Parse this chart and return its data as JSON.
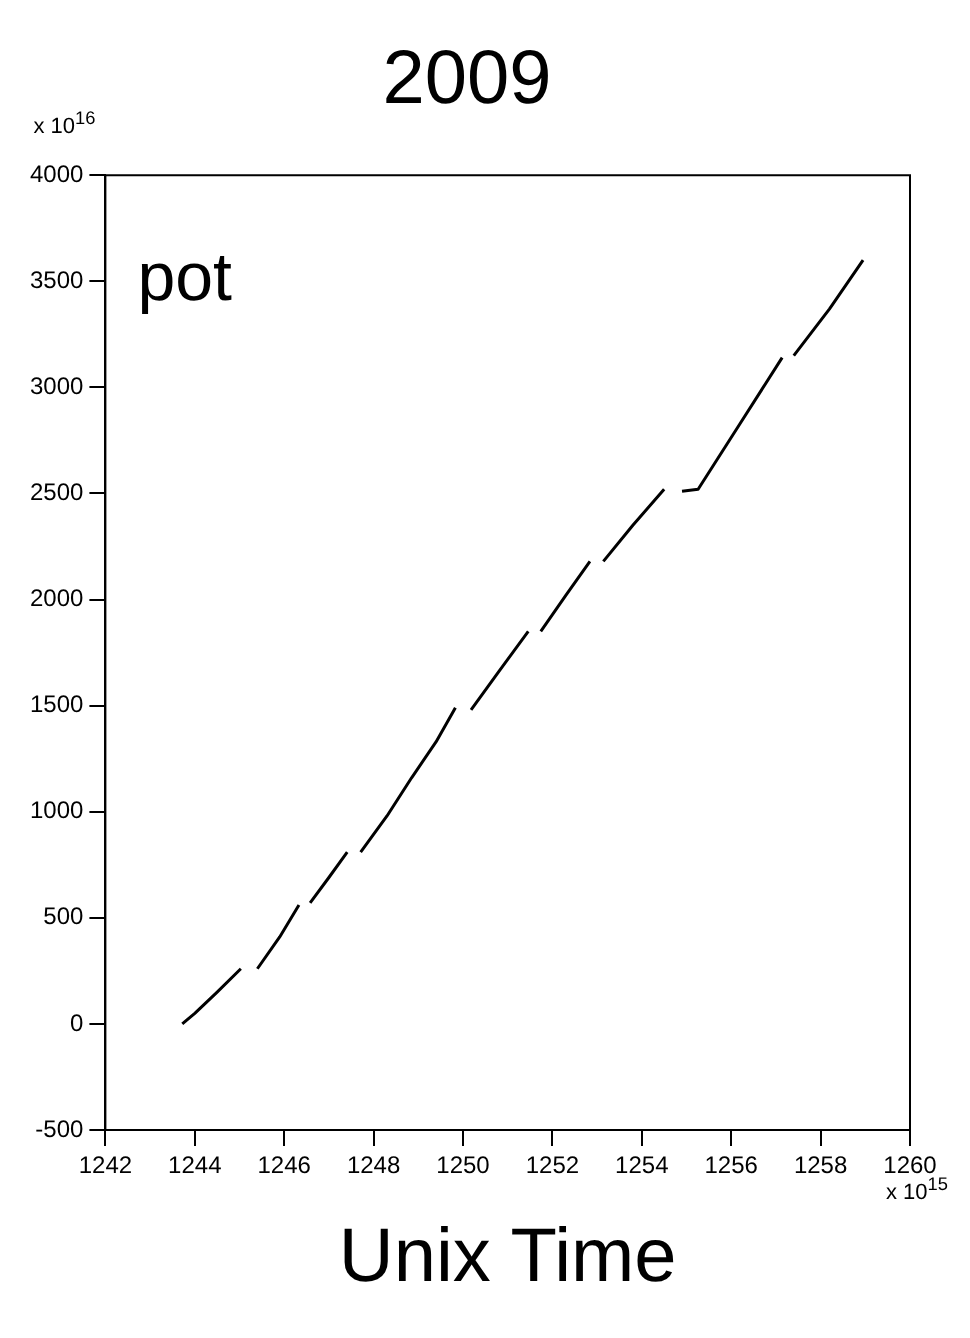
{
  "chart_data": {
    "type": "line",
    "title": "2009",
    "xlabel": "Unix Time",
    "annotations": [
      "pot",
      "x 10$^{16}$",
      "x 10$^{15}$"
    ],
    "series": [
      {
        "color": "#000000",
        "x": [
          1243.72,
          1244.0,
          1244.5,
          1245.03,
          1245.2,
          1245.4,
          1245.9,
          1246.33,
          1246.45,
          1246.58,
          1247.0,
          1247.41,
          1247.55,
          1247.71,
          1248.3,
          1248.85,
          1249.4,
          1249.83,
          1250.0,
          1250.18,
          1250.8,
          1251.46,
          1251.6,
          1251.74,
          1252.3,
          1252.84,
          1253.0,
          1253.14,
          1253.8,
          1254.5,
          1254.7,
          1254.9,
          1255.26,
          1256.2,
          1257.14,
          1257.27,
          1257.4,
          1258.2,
          1258.95
        ],
        "values": [
          0,
          50,
          150,
          260,
          null,
          260,
          410,
          560,
          null,
          570,
          690,
          810,
          null,
          810,
          980,
          1160,
          1330,
          1490,
          null,
          1480,
          1660,
          1850,
          null,
          1850,
          2020,
          2180,
          null,
          2180,
          2350,
          2520,
          null,
          2510,
          2520,
          2830,
          3140,
          null,
          3150,
          3370,
          3600
        ]
      }
    ],
    "xlim": [
      1242,
      1260
    ],
    "xticks": [
      1242,
      1244,
      1246,
      1248,
      1250,
      1252,
      1254,
      1256,
      1258,
      1260
    ],
    "ylim": [
      -500,
      4000
    ],
    "yticks": [
      -500,
      0,
      500,
      1000,
      1500,
      2000,
      2500,
      3000,
      3500,
      4000
    ],
    "grid": false,
    "legend": false,
    "marker": "none",
    "line_style": "solid"
  }
}
